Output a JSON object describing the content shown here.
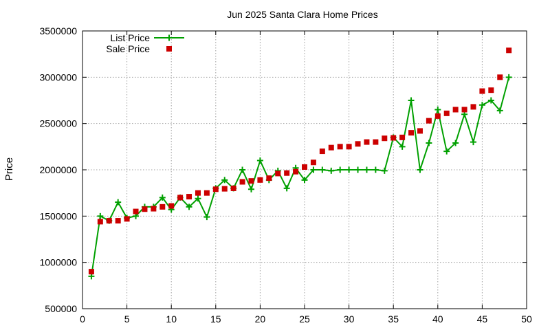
{
  "chart_data": {
    "type": "line",
    "title": "Jun 2025 Santa Clara Home Prices",
    "xlabel": "",
    "ylabel": "Price",
    "xlim": [
      0,
      50
    ],
    "ylim": [
      500000,
      3500000
    ],
    "x_ticks": [
      0,
      5,
      10,
      15,
      20,
      25,
      30,
      35,
      40,
      45,
      50
    ],
    "y_ticks": [
      500000,
      1000000,
      1500000,
      2000000,
      2500000,
      3000000,
      3500000
    ],
    "grid": true,
    "legend_position": "top-left",
    "x": [
      1,
      2,
      3,
      4,
      5,
      6,
      7,
      8,
      9,
      10,
      11,
      12,
      13,
      14,
      15,
      16,
      17,
      18,
      19,
      20,
      21,
      22,
      23,
      24,
      25,
      26,
      27,
      28,
      29,
      30,
      31,
      32,
      33,
      34,
      35,
      36,
      37,
      38,
      39,
      40,
      41,
      42,
      43,
      44,
      45,
      46,
      47,
      48
    ],
    "series": [
      {
        "name": "List Price",
        "style": "line-points",
        "color": "#00a000",
        "values": [
          850000,
          1500000,
          1450000,
          1650000,
          1480000,
          1500000,
          1600000,
          1600000,
          1700000,
          1570000,
          1700000,
          1600000,
          1690000,
          1490000,
          1800000,
          1890000,
          1800000,
          2000000,
          1790000,
          2100000,
          1890000,
          1990000,
          1800000,
          2020000,
          1890000,
          2000000,
          2000000,
          1990000,
          2000000,
          2000000,
          2000000,
          2000000,
          2000000,
          1990000,
          2350000,
          2250000,
          2750000,
          2000000,
          2290000,
          2650000,
          2200000,
          2290000,
          2600000,
          2300000,
          2700000,
          2750000,
          2640000,
          3000000
        ]
      },
      {
        "name": "Sale Price",
        "style": "points",
        "color": "#cc0000",
        "values": [
          900000,
          1440000,
          1450000,
          1450000,
          1470000,
          1550000,
          1575000,
          1580000,
          1600000,
          1610000,
          1700000,
          1710000,
          1750000,
          1750000,
          1790000,
          1795000,
          1800000,
          1870000,
          1880000,
          1890000,
          1910000,
          1960000,
          1965000,
          1980000,
          2030000,
          2080000,
          2200000,
          2240000,
          2250000,
          2250000,
          2280000,
          2300000,
          2300000,
          2340000,
          2345000,
          2350000,
          2400000,
          2420000,
          2530000,
          2580000,
          2610000,
          2650000,
          2650000,
          2680000,
          2850000,
          2860000,
          3000000,
          3290000
        ]
      }
    ]
  }
}
